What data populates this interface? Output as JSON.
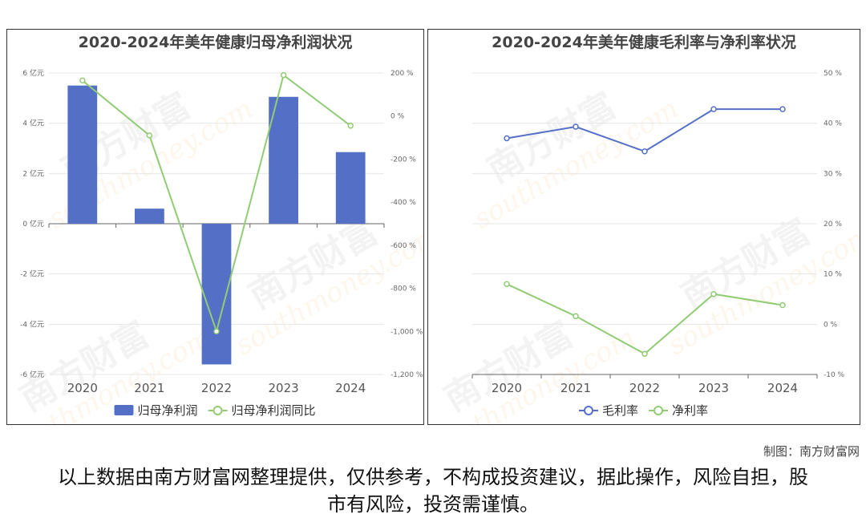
{
  "chart_data": [
    {
      "type": "bar",
      "title": "2020-2024年美年健康归母净利润状况",
      "categories": [
        "2020",
        "2021",
        "2022",
        "2023",
        "2024"
      ],
      "series": [
        {
          "name": "归母净利润",
          "type": "bar",
          "axis": "left",
          "values": [
            5.5,
            0.6,
            -5.6,
            5.05,
            2.85
          ],
          "color": "#5470c6"
        },
        {
          "name": "归母净利润同比",
          "type": "line",
          "axis": "right",
          "values": [
            165,
            -90,
            -1000,
            190,
            -45
          ],
          "color": "#91cc75"
        }
      ],
      "y_left": {
        "min": -6,
        "max": 6,
        "ticks": [
          6,
          4,
          2,
          0,
          -2,
          -4,
          -6
        ],
        "tick_labels": [
          "6 亿元",
          "4 亿元",
          "2 亿元",
          "0 亿元",
          "-2 亿元",
          "-4 亿元",
          "-6 亿元"
        ]
      },
      "y_right": {
        "min": -1200,
        "max": 200,
        "ticks": [
          200,
          0,
          -200,
          -400,
          -600,
          -800,
          -1000,
          -1200
        ],
        "tick_labels": [
          "200 %",
          "0 %",
          "-200 %",
          "-400 %",
          "-600 %",
          "-800 %",
          "-1,000 %",
          "-1,200 %"
        ]
      },
      "legend": "bottom",
      "grid": true
    },
    {
      "type": "line",
      "title": "2020-2024年美年健康毛利率与净利率状况",
      "categories": [
        "2020",
        "2021",
        "2022",
        "2023",
        "2024"
      ],
      "series": [
        {
          "name": "毛利率",
          "values": [
            37,
            39.3,
            34.4,
            42.8,
            42.8
          ],
          "color": "#5470c6"
        },
        {
          "name": "净利率",
          "values": [
            8,
            1.6,
            -5.9,
            6,
            3.8
          ],
          "color": "#91cc75"
        }
      ],
      "y_right": {
        "min": -10,
        "max": 50,
        "ticks": [
          50,
          40,
          30,
          20,
          10,
          0,
          -10
        ],
        "tick_labels": [
          "50 %",
          "40 %",
          "30 %",
          "20 %",
          "10 %",
          "0 %",
          "-10 %"
        ]
      },
      "legend": "bottom",
      "grid": true
    }
  ],
  "credit": "制图：南方财富网",
  "disclaimer": "以上数据由南方财富网整理提供，仅供参考，不构成投资建议，据此操作，风险自担，股市有风险，投资需谨慎。",
  "watermark": {
    "brand": "南方财富",
    "site": "southmoney.com"
  }
}
